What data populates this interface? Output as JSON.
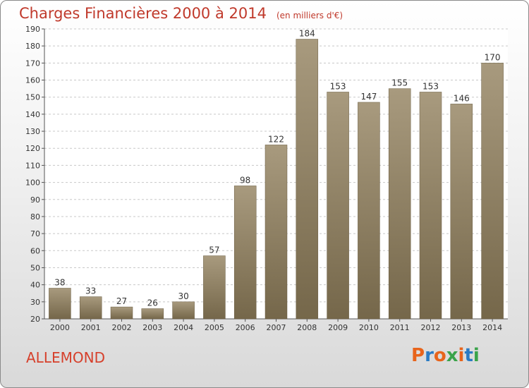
{
  "header": {
    "title": "Charges Financières 2000 à 2014",
    "subtitle": "(en milliers d'€)"
  },
  "footer": {
    "commune": "ALLEMOND",
    "brand": "Proxiti"
  },
  "colors": {
    "bar_top": "#a89a7e",
    "bar_bottom": "#75674a",
    "title": "#c0392b",
    "brand": [
      "#e8641b",
      "#2a7bc4",
      "#e8641b",
      "#3aa34a",
      "#e8641b",
      "#2a7bc4",
      "#3aa34a"
    ]
  },
  "chart_data": {
    "type": "bar",
    "title": "Charges Financières 2000 à 2014",
    "subtitle": "(en milliers d'€)",
    "categories": [
      "2000",
      "2001",
      "2002",
      "2003",
      "2004",
      "2005",
      "2006",
      "2007",
      "2008",
      "2009",
      "2010",
      "2011",
      "2012",
      "2013",
      "2014"
    ],
    "values": [
      38,
      33,
      27,
      26,
      30,
      57,
      98,
      122,
      184,
      153,
      147,
      155,
      153,
      146,
      170
    ],
    "ylim": [
      20,
      190
    ],
    "yticks": [
      20,
      30,
      40,
      50,
      60,
      70,
      80,
      90,
      100,
      110,
      120,
      130,
      140,
      150,
      160,
      170,
      180,
      190
    ],
    "grid": true
  }
}
